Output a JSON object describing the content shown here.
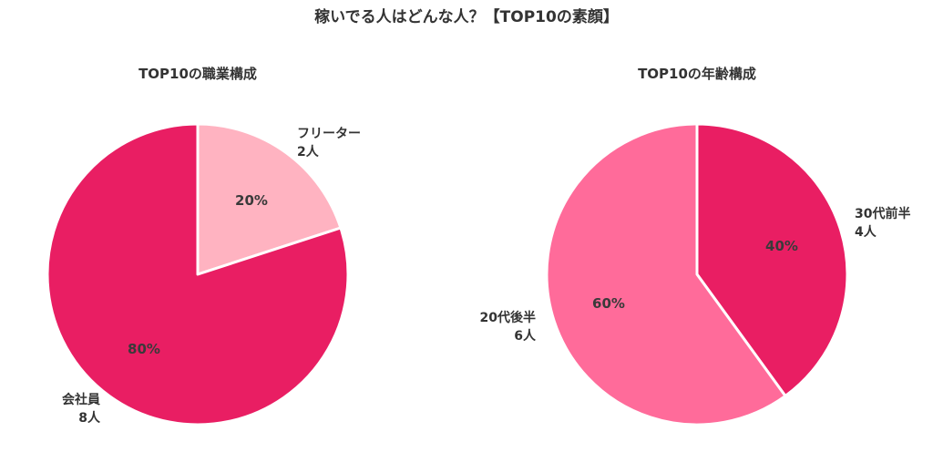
{
  "title": "稼いでる人はどんな人？【TOP10の素顔】",
  "chart_data": [
    {
      "type": "pie",
      "title": "TOP10の職業構成",
      "slices": [
        {
          "label": "フリーター",
          "count": "2人",
          "value": 20,
          "percent": "20%",
          "color": "#ffb3c1"
        },
        {
          "label": "会社員",
          "count": "8人",
          "value": 80,
          "percent": "80%",
          "color": "#e91e63"
        }
      ]
    },
    {
      "type": "pie",
      "title": "TOP10の年齢構成",
      "slices": [
        {
          "label": "30代前半",
          "count": "4人",
          "value": 40,
          "percent": "40%",
          "color": "#e91e63"
        },
        {
          "label": "20代後半",
          "count": "6人",
          "value": 60,
          "percent": "60%",
          "color": "#ff6b9a"
        }
      ]
    }
  ]
}
